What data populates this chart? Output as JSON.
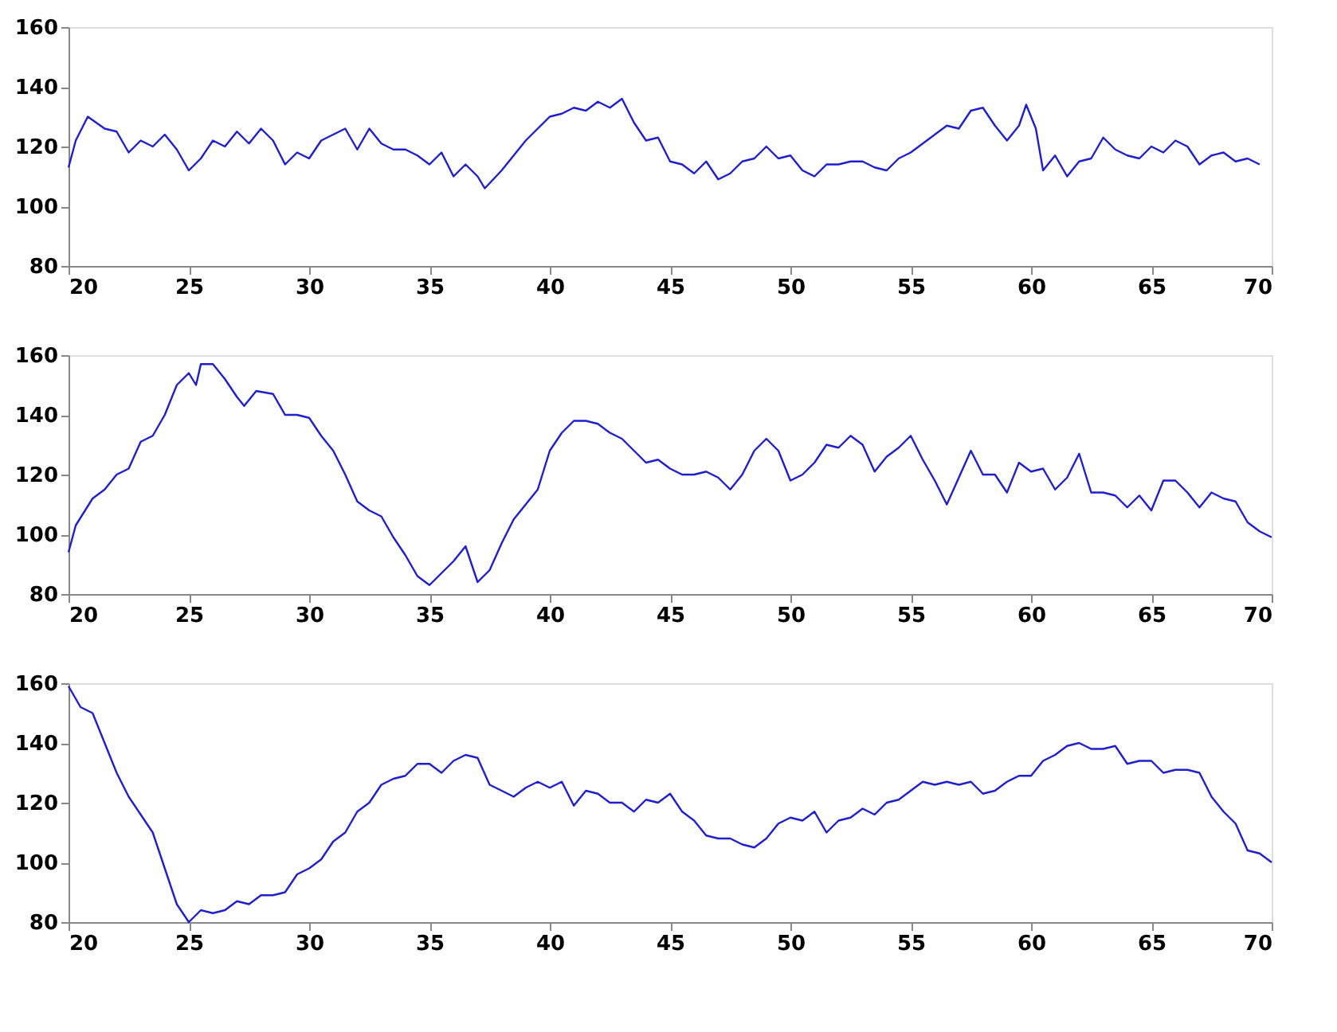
{
  "chart_data": [
    {
      "type": "line",
      "xlim": [
        20,
        70
      ],
      "xticks": [
        20,
        25,
        30,
        35,
        40,
        45,
        50,
        55,
        60,
        65,
        70
      ],
      "ylim": [
        80,
        160
      ],
      "yticks": [
        80,
        100,
        120,
        140,
        160
      ],
      "grid": false,
      "legend": false,
      "x": [
        20,
        20.3,
        20.8,
        21.5,
        22,
        22.5,
        23,
        23.5,
        24,
        24.5,
        25,
        25.5,
        26,
        26.5,
        27,
        27.5,
        28,
        28.5,
        29,
        29.5,
        30,
        30.5,
        31,
        31.5,
        32,
        32.5,
        33,
        33.5,
        34,
        34.5,
        35,
        35.5,
        36,
        36.5,
        37,
        37.3,
        38,
        39,
        40,
        40.5,
        41,
        41.5,
        42,
        42.5,
        43,
        43.5,
        44,
        44.5,
        45,
        45.5,
        46,
        46.5,
        47,
        47.5,
        48,
        48.5,
        49,
        49.5,
        50,
        50.5,
        51,
        51.5,
        52,
        52.5,
        53,
        53.5,
        54,
        54.5,
        55,
        55.5,
        56,
        56.5,
        57,
        57.5,
        58,
        58.5,
        59,
        59.5,
        59.8,
        60.2,
        60.5,
        61,
        61.5,
        62,
        62.5,
        63,
        63.5,
        64,
        64.5,
        65,
        65.5,
        66,
        66.5,
        67,
        67.5,
        68,
        68.5,
        69,
        69.5
      ],
      "series": [
        {
          "color": "#1f1fd0",
          "values": [
            113,
            122,
            130,
            126,
            125,
            118,
            122,
            120,
            124,
            119,
            112,
            116,
            122,
            120,
            125,
            121,
            126,
            122,
            114,
            118,
            116,
            122,
            124,
            126,
            119,
            126,
            121,
            119,
            119,
            117,
            114,
            118,
            110,
            114,
            110,
            106,
            112,
            122,
            130,
            131,
            133,
            132,
            135,
            133,
            136,
            128,
            122,
            123,
            115,
            114,
            111,
            115,
            109,
            111,
            115,
            116,
            120,
            116,
            117,
            112,
            110,
            114,
            114,
            115,
            115,
            113,
            112,
            116,
            118,
            121,
            124,
            127,
            126,
            132,
            133,
            127,
            122,
            127,
            134,
            126,
            112,
            117,
            110,
            115,
            116,
            123,
            119,
            117,
            116,
            120,
            118,
            122,
            120,
            114,
            117,
            118,
            115,
            116,
            114
          ]
        }
      ]
    },
    {
      "type": "line",
      "xlim": [
        20,
        70
      ],
      "xticks": [
        20,
        25,
        30,
        35,
        40,
        45,
        50,
        55,
        60,
        65,
        70
      ],
      "ylim": [
        80,
        160
      ],
      "yticks": [
        80,
        100,
        120,
        140,
        160
      ],
      "grid": false,
      "legend": false,
      "x": [
        20,
        20.3,
        21,
        21.5,
        22,
        22.5,
        23,
        23.5,
        24,
        24.5,
        25,
        25.3,
        25.5,
        26,
        26.5,
        27,
        27.3,
        27.8,
        28.5,
        29,
        29.5,
        30,
        30.5,
        31,
        31.5,
        32,
        32.5,
        33,
        33.5,
        34,
        34.5,
        35,
        35.5,
        36,
        36.5,
        37,
        37.5,
        38,
        38.5,
        39,
        39.5,
        40,
        40.5,
        41,
        41.5,
        42,
        42.5,
        43,
        43.5,
        44,
        44.5,
        45,
        45.5,
        46,
        46.5,
        47,
        47.5,
        48,
        48.5,
        49,
        49.5,
        50,
        50.5,
        51,
        51.5,
        52,
        52.5,
        53,
        53.5,
        54,
        54.5,
        55,
        55.5,
        56,
        56.5,
        57,
        57.5,
        58,
        58.5,
        59,
        59.5,
        60,
        60.5,
        61,
        61.5,
        62,
        62.5,
        63,
        63.5,
        64,
        64.5,
        65,
        65.5,
        66,
        66.5,
        67,
        67.5,
        68,
        68.5,
        69,
        69.5,
        70
      ],
      "series": [
        {
          "color": "#1f1fd0",
          "values": [
            94,
            103,
            112,
            115,
            120,
            122,
            131,
            133,
            140,
            150,
            154,
            150,
            157,
            157,
            152,
            146,
            143,
            148,
            147,
            140,
            140,
            139,
            133,
            128,
            120,
            111,
            108,
            106,
            99,
            93,
            86,
            83,
            87,
            91,
            96,
            84,
            88,
            97,
            105,
            110,
            115,
            128,
            134,
            138,
            138,
            137,
            134,
            132,
            128,
            124,
            125,
            122,
            120,
            120,
            121,
            119,
            115,
            120,
            128,
            132,
            128,
            118,
            120,
            124,
            130,
            129,
            133,
            130,
            121,
            126,
            129,
            133,
            125,
            118,
            110,
            119,
            128,
            120,
            120,
            114,
            124,
            121,
            122,
            115,
            119,
            127,
            114,
            114,
            113,
            109,
            113,
            108,
            118,
            118,
            114,
            109,
            114,
            112,
            111,
            104,
            101,
            99
          ]
        }
      ]
    },
    {
      "type": "line",
      "xlim": [
        20,
        70
      ],
      "xticks": [
        20,
        25,
        30,
        35,
        40,
        45,
        50,
        55,
        60,
        65,
        70
      ],
      "ylim": [
        80,
        160
      ],
      "yticks": [
        80,
        100,
        120,
        140,
        160
      ],
      "grid": false,
      "legend": false,
      "x": [
        20,
        20.5,
        21,
        21.5,
        22,
        22.5,
        23,
        23.5,
        24,
        24.5,
        25,
        25.5,
        26,
        26.5,
        27,
        27.5,
        28,
        28.5,
        29,
        29.5,
        30,
        30.5,
        31,
        31.5,
        32,
        32.5,
        33,
        33.5,
        34,
        34.5,
        35,
        35.5,
        36,
        36.5,
        37,
        37.5,
        38,
        38.5,
        39,
        39.5,
        40,
        40.5,
        41,
        41.5,
        42,
        42.5,
        43,
        43.5,
        44,
        44.5,
        45,
        45.5,
        46,
        46.5,
        47,
        47.5,
        48,
        48.5,
        49,
        49.5,
        50,
        50.5,
        51,
        51.5,
        52,
        52.5,
        53,
        53.5,
        54,
        54.5,
        55,
        55.5,
        56,
        56.5,
        57,
        57.5,
        58,
        58.5,
        59,
        59.5,
        60,
        60.5,
        61,
        61.5,
        62,
        62.5,
        63,
        63.5,
        64,
        64.5,
        65,
        65.5,
        66,
        66.5,
        67,
        67.5,
        68,
        68.5,
        69,
        69.5,
        70
      ],
      "series": [
        {
          "color": "#1f1fd0",
          "values": [
            159,
            152,
            150,
            140,
            130,
            122,
            116,
            110,
            98,
            86,
            80,
            84,
            83,
            84,
            87,
            86,
            89,
            89,
            90,
            96,
            98,
            101,
            107,
            110,
            117,
            120,
            126,
            128,
            129,
            133,
            133,
            130,
            134,
            136,
            135,
            126,
            124,
            122,
            125,
            127,
            125,
            127,
            119,
            124,
            123,
            120,
            120,
            117,
            121,
            120,
            123,
            117,
            114,
            109,
            108,
            108,
            106,
            105,
            108,
            113,
            115,
            114,
            117,
            110,
            114,
            115,
            118,
            116,
            120,
            121,
            124,
            127,
            126,
            127,
            126,
            127,
            123,
            124,
            127,
            129,
            129,
            134,
            136,
            139,
            140,
            138,
            138,
            139,
            133,
            134,
            134,
            130,
            131,
            131,
            130,
            122,
            117,
            113,
            104,
            103,
            100
          ]
        }
      ]
    }
  ]
}
